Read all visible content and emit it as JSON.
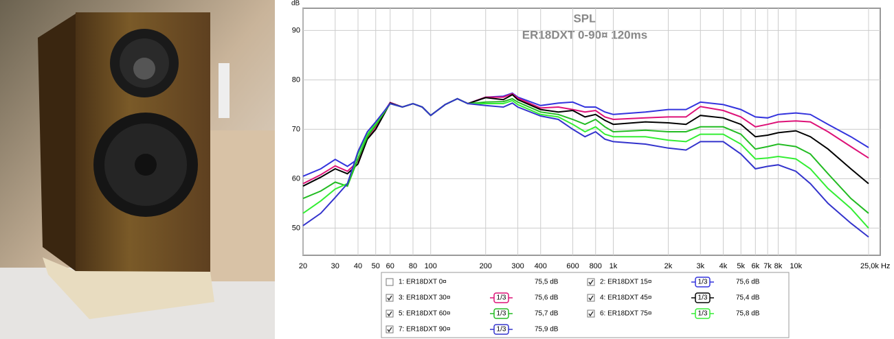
{
  "chart_data": {
    "type": "line",
    "title": "SPL",
    "subtitle": "ER18DXT 0-90¤ 120ms",
    "y_label": "dB",
    "x": [
      20,
      25,
      30,
      35,
      40,
      45,
      50,
      60,
      70,
      80,
      90,
      100,
      120,
      140,
      160,
      200,
      250,
      280,
      300,
      400,
      500,
      600,
      700,
      800,
      900,
      1000,
      1500,
      2000,
      2500,
      3000,
      4000,
      5000,
      6000,
      7000,
      8000,
      10000,
      12000,
      15000,
      20000,
      25000
    ],
    "xlim": [
      20,
      25000
    ],
    "log_x": true,
    "xticks": [
      20,
      30,
      40,
      50,
      60,
      80,
      100,
      200,
      300,
      400,
      600,
      800,
      {
        "value": 1000,
        "label": "1k"
      },
      {
        "value": 2000,
        "label": "2k"
      },
      {
        "value": 3000,
        "label": "3k"
      },
      {
        "value": 4000,
        "label": "4k"
      },
      {
        "value": 5000,
        "label": "5k"
      },
      {
        "value": 6000,
        "label": "6k"
      },
      {
        "value": 7000,
        "label": "7k"
      },
      {
        "value": 8000,
        "label": "8k"
      },
      {
        "value": 10000,
        "label": "10k"
      },
      {
        "value": 25000,
        "label": "25,0k Hz"
      }
    ],
    "ylim": [
      44.5,
      94.5
    ],
    "yticks": [
      50,
      60,
      70,
      80,
      90
    ],
    "grid": true,
    "series": [
      {
        "name": "1: ER18DXT 0¤",
        "color": "#c8c820",
        "checked": false,
        "level": "75,5 dB",
        "values": [
          null,
          null,
          null,
          null,
          null,
          null,
          null,
          null,
          null,
          null,
          null,
          null,
          null,
          null,
          null,
          null,
          null,
          null,
          null,
          null,
          null,
          null,
          null,
          null,
          null,
          null,
          null,
          null,
          null,
          null,
          null,
          null,
          null,
          null,
          null,
          null,
          null,
          null,
          null,
          null
        ]
      },
      {
        "name": "2: ER18DXT 15¤",
        "color": "#3333dd",
        "checked": true,
        "smoothing": "1/3",
        "level": "75,6 dB",
        "values": [
          60.5,
          62,
          63.9,
          62.5,
          64,
          68.5,
          71,
          75.4,
          74.5,
          75.2,
          74.5,
          72.8,
          75,
          76.2,
          75.2,
          76.5,
          76.7,
          77.3,
          76.5,
          74.8,
          75.3,
          75.5,
          74.5,
          74.5,
          73.5,
          73,
          73.5,
          74,
          74,
          75.5,
          75,
          74,
          72.5,
          72.3,
          73,
          73.3,
          73,
          71,
          68.5,
          66.3
        ]
      },
      {
        "name": "3: ER18DXT 30¤",
        "color": "#dd1177",
        "checked": true,
        "smoothing": "1/3",
        "level": "75,6 dB",
        "values": [
          59,
          60.8,
          62.6,
          61.5,
          63.5,
          68.3,
          70.5,
          75.4,
          74.5,
          75.2,
          74.5,
          72.8,
          75,
          76.2,
          75.2,
          76.5,
          76.5,
          77.2,
          76.3,
          74.3,
          74.5,
          74,
          73.5,
          73.8,
          72.5,
          72,
          72.3,
          72.5,
          72.5,
          74.6,
          73.8,
          72.5,
          70.5,
          71,
          71.5,
          71.7,
          71.5,
          69.5,
          66.5,
          64.2
        ]
      },
      {
        "name": "4: ER18DXT 45¤",
        "color": "#000000",
        "checked": true,
        "smoothing": "1/3",
        "level": "75,4 dB",
        "values": [
          58.5,
          60.3,
          62,
          61,
          63,
          68,
          70,
          75.3,
          74.5,
          75.2,
          74.5,
          72.8,
          75,
          76.2,
          75.2,
          76.4,
          76,
          77,
          76,
          74,
          73.5,
          73.8,
          72.5,
          73,
          71.8,
          71,
          71.5,
          71.3,
          71,
          72.8,
          72.3,
          71,
          68.5,
          68.8,
          69.3,
          69.7,
          68.5,
          66,
          62,
          59
        ]
      },
      {
        "name": "5: ER18DXT 60¤",
        "color": "#22bb22",
        "checked": true,
        "smoothing": "1/3",
        "level": "75,7 dB",
        "values": [
          56,
          57.5,
          59.3,
          58.5,
          64,
          68.5,
          70.8,
          75.2,
          74.5,
          75.2,
          74.5,
          72.8,
          75,
          76.2,
          75.2,
          75.5,
          75.6,
          76.2,
          75.5,
          73.5,
          73,
          72,
          71,
          72,
          70.5,
          69.5,
          69.8,
          69.5,
          69.5,
          70.5,
          70.5,
          69,
          66,
          66.5,
          67,
          66.5,
          65,
          61,
          56,
          53
        ]
      },
      {
        "name": "6: ER18DXT 75¤",
        "color": "#33ee33",
        "checked": true,
        "smoothing": "1/3",
        "level": "75,8 dB",
        "values": [
          53,
          55.5,
          57.9,
          59,
          65,
          69,
          71.2,
          75.2,
          74.5,
          75.2,
          74.5,
          72.8,
          75,
          76.2,
          75.2,
          75.2,
          75.2,
          75.8,
          75,
          73,
          72.5,
          71,
          69.5,
          70.5,
          69,
          68.5,
          68.5,
          67.8,
          67.5,
          69,
          69,
          67,
          64,
          64.2,
          64.5,
          64,
          62,
          58,
          54,
          50
        ]
      },
      {
        "name": "7: ER18DXT 90¤",
        "color": "#3333cc",
        "checked": true,
        "smoothing": "1/3",
        "level": "75,9 dB",
        "values": [
          50.5,
          53,
          56.2,
          59,
          65.5,
          69.5,
          71.5,
          75.2,
          74.5,
          75.2,
          74.5,
          72.8,
          75,
          76.2,
          75.2,
          74.8,
          74.5,
          75.3,
          74.5,
          72.7,
          72,
          70,
          68.5,
          69.5,
          68,
          67.5,
          67,
          66.2,
          65.8,
          67.5,
          67.5,
          65,
          62,
          62.5,
          62.8,
          61.5,
          59,
          55,
          51,
          48.2
        ]
      }
    ]
  }
}
